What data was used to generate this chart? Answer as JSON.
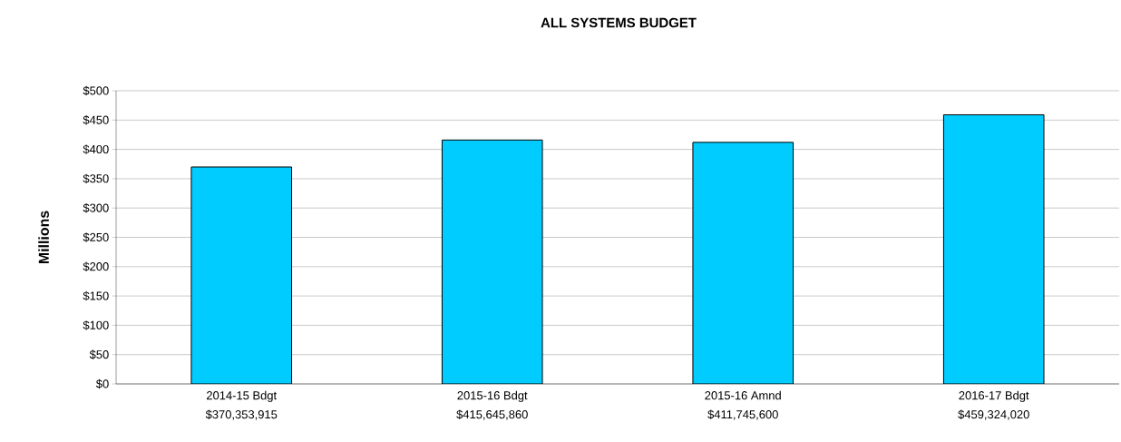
{
  "chart_data": {
    "type": "bar",
    "title": "ALL SYSTEMS BUDGET",
    "ylabel": "Millions",
    "categories": [
      "2014-15 Bdgt",
      "2015-16 Bdgt",
      "2015-16 Amnd",
      "2016-17 Bdgt"
    ],
    "values": [
      370,
      416,
      412,
      459
    ],
    "annotations": [
      "$370,353,915",
      "$415,645,860",
      "$411,745,600",
      "$459,324,020"
    ],
    "color": "#00ccff",
    "ylim": [
      0,
      500
    ],
    "yticks": [
      {
        "value": 0,
        "label": "$0"
      },
      {
        "value": 50,
        "label": "$50"
      },
      {
        "value": 100,
        "label": "$100"
      },
      {
        "value": 150,
        "label": "$150"
      },
      {
        "value": 200,
        "label": "$200"
      },
      {
        "value": 250,
        "label": "$250"
      },
      {
        "value": 300,
        "label": "$300"
      },
      {
        "value": 350,
        "label": "$350"
      },
      {
        "value": 400,
        "label": "$400"
      },
      {
        "value": 450,
        "label": "$450"
      },
      {
        "value": 500,
        "label": "$500"
      }
    ],
    "grid": "y"
  }
}
